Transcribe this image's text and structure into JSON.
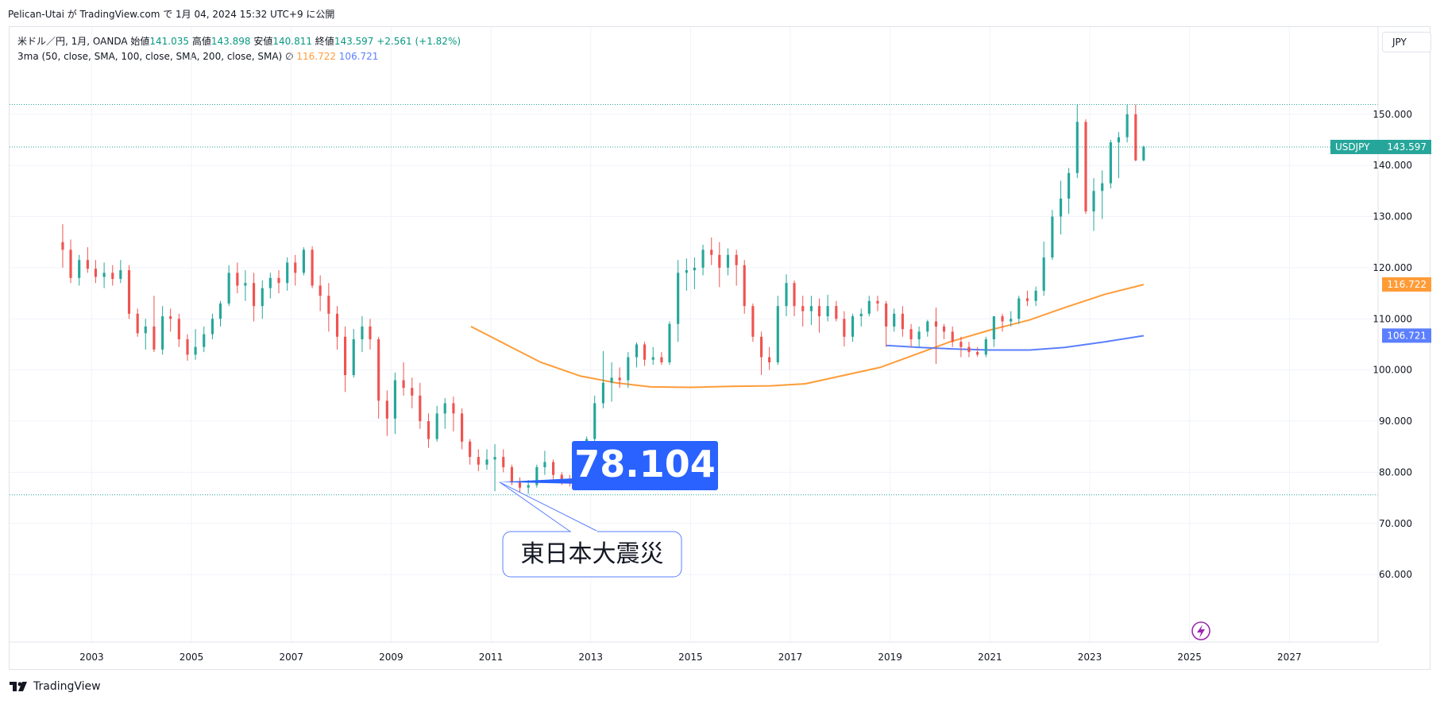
{
  "caption": "Pelican-Utai が TradingView.com で 1月 04, 2024 15:32 UTC+9 に公開",
  "legend": {
    "symbol": "米ドル／円, 1月, OANDA",
    "open_label": "始値",
    "open": "141.035",
    "high_label": "高値",
    "high": "143.898",
    "low_label": "安値",
    "low": "140.811",
    "close_label": "終値",
    "close": "143.597",
    "change": "+2.561 (+1.82%)",
    "ma_text": "3ma (50, close, SMA, 100, close, SMA, 200, close, SMA)",
    "ma_null": "∅",
    "ma100_value": "116.722",
    "ma200_value": "106.721"
  },
  "currency_button": "JPY",
  "brand": "TradingView",
  "annotations": {
    "low_value_label": "78.104",
    "event_label": "東日本大震災"
  },
  "colors": {
    "up": "#26a69a",
    "down": "#ef5350",
    "ma100": "#ff9c38",
    "ma200": "#5b7fff",
    "price_tag": "#26a69a",
    "low_badge": "#2962ff",
    "accent_icon": "#9c27b0"
  },
  "chart_data": {
    "type": "candlestick",
    "symbol": "USDJPY",
    "interval": "1M",
    "ylim": [
      53.5,
      154
    ],
    "yticks": [
      "60.000",
      "70.000",
      "80.000",
      "90.000",
      "100.000",
      "110.000",
      "120.000",
      "130.000",
      "140.000",
      "150.000"
    ],
    "xlim": [
      2001.8,
      2028.3
    ],
    "xticks": [
      "2003",
      "2005",
      "2007",
      "2009",
      "2011",
      "2013",
      "2015",
      "2017",
      "2019",
      "2021",
      "2023",
      "2025",
      "2027"
    ],
    "last_price": {
      "label": "USDJPY",
      "value": "143.597"
    },
    "reference_levels": [
      151.9,
      143.6,
      75.6
    ],
    "candles": [
      [
        2002.42,
        125.0,
        128.5,
        120.0,
        123.5
      ],
      [
        2002.58,
        123.5,
        125.5,
        117.0,
        118.0
      ],
      [
        2002.75,
        118.0,
        122.5,
        116.5,
        121.5
      ],
      [
        2002.92,
        121.5,
        124.0,
        119.0,
        119.8
      ],
      [
        2003.08,
        119.8,
        121.5,
        117.0,
        118.2
      ],
      [
        2003.25,
        118.2,
        121.0,
        116.0,
        119.0
      ],
      [
        2003.42,
        119.0,
        120.5,
        116.5,
        117.8
      ],
      [
        2003.58,
        117.8,
        121.5,
        117.0,
        119.5
      ],
      [
        2003.75,
        119.5,
        120.5,
        110.0,
        111.0
      ],
      [
        2003.92,
        111.0,
        112.0,
        106.5,
        107.2
      ],
      [
        2004.08,
        107.2,
        110.0,
        104.0,
        108.5
      ],
      [
        2004.25,
        108.5,
        114.5,
        103.5,
        104.0
      ],
      [
        2004.42,
        104.0,
        112.5,
        103.0,
        110.5
      ],
      [
        2004.58,
        110.5,
        112.0,
        107.5,
        110.0
      ],
      [
        2004.75,
        110.0,
        111.0,
        104.5,
        106.0
      ],
      [
        2004.92,
        106.0,
        107.0,
        101.8,
        103.0
      ],
      [
        2005.08,
        103.0,
        108.0,
        102.0,
        104.5
      ],
      [
        2005.25,
        104.5,
        108.5,
        103.5,
        107.0
      ],
      [
        2005.42,
        107.0,
        111.0,
        106.0,
        110.0
      ],
      [
        2005.58,
        110.0,
        113.5,
        108.5,
        113.0
      ],
      [
        2005.75,
        113.0,
        120.5,
        112.5,
        119.0
      ],
      [
        2005.92,
        119.0,
        121.0,
        115.0,
        116.5
      ],
      [
        2006.08,
        116.5,
        119.5,
        113.5,
        117.0
      ],
      [
        2006.25,
        117.0,
        119.0,
        109.5,
        112.5
      ],
      [
        2006.42,
        112.5,
        117.5,
        110.0,
        116.0
      ],
      [
        2006.58,
        116.0,
        119.0,
        114.0,
        118.0
      ],
      [
        2006.75,
        118.0,
        119.5,
        115.0,
        117.0
      ],
      [
        2006.92,
        117.0,
        122.0,
        115.5,
        121.0
      ],
      [
        2007.08,
        121.0,
        122.5,
        116.5,
        119.0
      ],
      [
        2007.25,
        119.0,
        124.0,
        118.5,
        123.5
      ],
      [
        2007.42,
        123.5,
        124.2,
        116.0,
        116.5
      ],
      [
        2007.58,
        116.5,
        118.5,
        111.5,
        114.5
      ],
      [
        2007.75,
        114.5,
        117.0,
        107.5,
        111.0
      ],
      [
        2007.92,
        111.0,
        112.5,
        104.0,
        106.5
      ],
      [
        2008.08,
        106.5,
        108.5,
        95.7,
        99.0
      ],
      [
        2008.25,
        99.0,
        108.0,
        98.5,
        106.0
      ],
      [
        2008.42,
        106.0,
        110.5,
        103.5,
        108.5
      ],
      [
        2008.58,
        108.5,
        110.0,
        104.0,
        106.0
      ],
      [
        2008.75,
        106.0,
        106.5,
        90.5,
        94.0
      ],
      [
        2008.92,
        94.0,
        96.0,
        87.1,
        90.5
      ],
      [
        2009.08,
        90.5,
        99.5,
        87.5,
        98.0
      ],
      [
        2009.25,
        98.0,
        101.5,
        95.0,
        96.5
      ],
      [
        2009.42,
        96.5,
        98.5,
        92.5,
        95.0
      ],
      [
        2009.58,
        95.0,
        97.5,
        88.5,
        90.0
      ],
      [
        2009.75,
        90.0,
        91.5,
        84.8,
        86.5
      ],
      [
        2009.92,
        86.5,
        93.0,
        86.0,
        91.5
      ],
      [
        2010.08,
        91.5,
        94.5,
        88.5,
        93.5
      ],
      [
        2010.25,
        93.5,
        94.8,
        88.0,
        91.5
      ],
      [
        2010.42,
        91.5,
        92.5,
        84.5,
        86.0
      ],
      [
        2010.58,
        86.0,
        86.5,
        81.5,
        83.0
      ],
      [
        2010.75,
        83.0,
        84.5,
        80.2,
        81.5
      ],
      [
        2010.92,
        81.5,
        84.5,
        80.5,
        82.5
      ],
      [
        2011.08,
        82.5,
        85.5,
        76.3,
        83.0
      ],
      [
        2011.25,
        83.0,
        84.5,
        80.0,
        81.0
      ],
      [
        2011.42,
        81.0,
        81.5,
        77.5,
        78.0
      ],
      [
        2011.58,
        78.0,
        79.0,
        76.0,
        77.0
      ],
      [
        2011.75,
        77.0,
        78.5,
        75.8,
        77.5
      ],
      [
        2011.92,
        77.5,
        81.5,
        77.0,
        81.0
      ],
      [
        2012.08,
        81.0,
        84.2,
        79.5,
        82.0
      ],
      [
        2012.25,
        82.0,
        82.5,
        78.5,
        79.5
      ],
      [
        2012.42,
        79.5,
        80.0,
        77.5,
        78.5
      ],
      [
        2012.58,
        78.5,
        79.5,
        77.2,
        78.0
      ],
      [
        2012.75,
        78.0,
        82.5,
        77.8,
        82.0
      ],
      [
        2012.92,
        82.0,
        87.0,
        81.5,
        86.5
      ],
      [
        2013.08,
        86.5,
        95.0,
        86.0,
        93.5
      ],
      [
        2013.25,
        93.5,
        103.7,
        92.5,
        97.5
      ],
      [
        2013.42,
        97.5,
        101.5,
        93.8,
        98.5
      ],
      [
        2013.58,
        98.5,
        100.5,
        96.5,
        98.0
      ],
      [
        2013.75,
        98.0,
        103.5,
        96.5,
        102.5
      ],
      [
        2013.92,
        102.5,
        105.4,
        100.5,
        105.0
      ],
      [
        2014.08,
        105.0,
        105.5,
        100.8,
        102.0
      ],
      [
        2014.25,
        102.0,
        104.5,
        101.0,
        102.5
      ],
      [
        2014.42,
        102.5,
        103.5,
        101.0,
        101.5
      ],
      [
        2014.58,
        101.5,
        109.5,
        101.0,
        109.0
      ],
      [
        2014.75,
        109.0,
        121.5,
        105.5,
        119.0
      ],
      [
        2014.92,
        119.0,
        121.8,
        115.5,
        119.5
      ],
      [
        2015.08,
        119.5,
        122.0,
        115.8,
        120.0
      ],
      [
        2015.25,
        120.0,
        124.5,
        118.5,
        123.5
      ],
      [
        2015.42,
        123.5,
        125.9,
        120.5,
        122.5
      ],
      [
        2015.58,
        122.5,
        125.0,
        116.2,
        120.0
      ],
      [
        2015.75,
        120.0,
        123.8,
        118.5,
        122.5
      ],
      [
        2015.92,
        122.5,
        123.5,
        116.5,
        120.5
      ],
      [
        2016.08,
        120.5,
        121.5,
        111.0,
        112.5
      ],
      [
        2016.25,
        112.5,
        113.0,
        105.5,
        106.5
      ],
      [
        2016.42,
        106.5,
        107.5,
        99.0,
        102.5
      ],
      [
        2016.58,
        102.5,
        104.5,
        100.0,
        101.5
      ],
      [
        2016.75,
        101.5,
        114.5,
        101.0,
        112.5
      ],
      [
        2016.92,
        112.5,
        118.7,
        110.5,
        117.0
      ],
      [
        2017.08,
        117.0,
        117.5,
        110.5,
        112.5
      ],
      [
        2017.25,
        112.5,
        114.5,
        108.5,
        111.5
      ],
      [
        2017.42,
        111.5,
        114.5,
        108.8,
        112.5
      ],
      [
        2017.58,
        112.5,
        114.0,
        107.3,
        110.5
      ],
      [
        2017.75,
        110.5,
        114.7,
        109.5,
        112.5
      ],
      [
        2017.92,
        112.5,
        113.5,
        109.5,
        110.0
      ],
      [
        2018.08,
        110.0,
        111.5,
        104.6,
        106.5
      ],
      [
        2018.25,
        106.5,
        111.0,
        105.5,
        110.5
      ],
      [
        2018.42,
        110.5,
        112.0,
        108.5,
        111.0
      ],
      [
        2018.58,
        111.0,
        114.5,
        110.5,
        113.5
      ],
      [
        2018.75,
        113.5,
        114.5,
        111.5,
        113.0
      ],
      [
        2018.92,
        113.0,
        113.5,
        104.5,
        108.5
      ],
      [
        2019.08,
        108.5,
        112.0,
        107.5,
        111.0
      ],
      [
        2019.25,
        111.0,
        112.5,
        106.5,
        108.0
      ],
      [
        2019.42,
        108.0,
        109.0,
        104.5,
        106.0
      ],
      [
        2019.58,
        106.0,
        108.5,
        104.5,
        107.5
      ],
      [
        2019.75,
        107.5,
        109.8,
        106.5,
        109.5
      ],
      [
        2019.92,
        109.5,
        112.2,
        101.2,
        108.5
      ],
      [
        2020.08,
        108.5,
        109.0,
        106.0,
        107.5
      ],
      [
        2020.25,
        107.5,
        108.5,
        104.5,
        105.5
      ],
      [
        2020.42,
        105.5,
        106.5,
        102.5,
        104.5
      ],
      [
        2020.58,
        104.5,
        105.5,
        102.5,
        103.5
      ],
      [
        2020.75,
        103.5,
        104.5,
        102.6,
        103.0
      ],
      [
        2020.92,
        103.0,
        106.5,
        102.5,
        106.0
      ],
      [
        2021.08,
        106.0,
        110.5,
        104.5,
        110.5
      ],
      [
        2021.25,
        110.5,
        111.0,
        107.5,
        109.5
      ],
      [
        2021.42,
        109.5,
        111.5,
        108.5,
        110.0
      ],
      [
        2021.58,
        110.0,
        114.5,
        109.0,
        114.0
      ],
      [
        2021.75,
        114.0,
        115.5,
        112.5,
        113.5
      ],
      [
        2021.92,
        113.5,
        116.3,
        112.5,
        115.5
      ],
      [
        2022.08,
        115.5,
        125.1,
        114.5,
        122.0
      ],
      [
        2022.25,
        122.0,
        131.3,
        121.5,
        130.0
      ],
      [
        2022.42,
        130.0,
        137.0,
        126.5,
        133.5
      ],
      [
        2022.58,
        133.5,
        139.5,
        130.5,
        138.5
      ],
      [
        2022.75,
        138.5,
        151.9,
        137.5,
        148.5
      ],
      [
        2022.92,
        148.5,
        149.0,
        130.5,
        131.0
      ],
      [
        2023.08,
        131.0,
        137.5,
        127.2,
        135.0
      ],
      [
        2023.25,
        135.0,
        139.0,
        129.5,
        136.5
      ],
      [
        2023.42,
        136.5,
        145.0,
        135.5,
        144.5
      ],
      [
        2023.58,
        144.5,
        146.5,
        137.5,
        145.5
      ],
      [
        2023.75,
        145.5,
        151.9,
        144.5,
        150.0
      ],
      [
        2023.92,
        150.0,
        151.9,
        140.8,
        141.0
      ],
      [
        2024.08,
        141.0,
        143.9,
        140.8,
        143.6
      ]
    ],
    "series": [
      {
        "name": "SMA 100",
        "value": "116.722",
        "points": [
          [
            2010.6,
            108.5
          ],
          [
            2011.3,
            105.0
          ],
          [
            2012.0,
            101.5
          ],
          [
            2012.8,
            98.8
          ],
          [
            2013.5,
            97.5
          ],
          [
            2014.2,
            96.7
          ],
          [
            2015.0,
            96.6
          ],
          [
            2015.8,
            96.8
          ],
          [
            2016.6,
            96.9
          ],
          [
            2017.3,
            97.3
          ],
          [
            2018.0,
            98.8
          ],
          [
            2018.8,
            100.5
          ],
          [
            2019.5,
            103.0
          ],
          [
            2020.2,
            105.5
          ],
          [
            2021.0,
            107.8
          ],
          [
            2021.8,
            109.8
          ],
          [
            2022.5,
            112.2
          ],
          [
            2023.3,
            114.8
          ],
          [
            2024.08,
            116.7
          ]
        ]
      },
      {
        "name": "SMA 200",
        "value": "106.721",
        "points": [
          [
            2018.92,
            104.8
          ],
          [
            2019.6,
            104.4
          ],
          [
            2020.3,
            104.1
          ],
          [
            2021.0,
            103.9
          ],
          [
            2021.8,
            103.9
          ],
          [
            2022.5,
            104.4
          ],
          [
            2023.3,
            105.5
          ],
          [
            2024.08,
            106.7
          ]
        ]
      }
    ],
    "annotations": [
      {
        "type": "price-label",
        "text": "78.104",
        "anchor": [
          2011.17,
          78.1
        ]
      },
      {
        "type": "callout",
        "text": "東日本大震災",
        "anchor": [
          2011.17,
          78.1
        ]
      }
    ]
  }
}
